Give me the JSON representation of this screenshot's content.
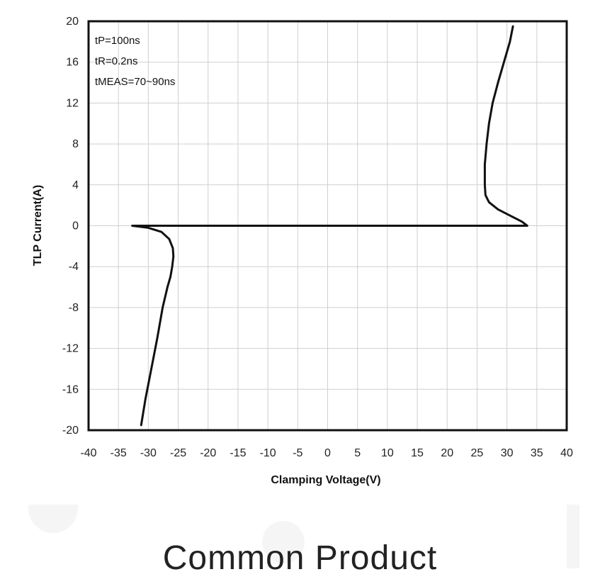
{
  "caption": "Common Product",
  "chart_data": {
    "type": "line",
    "title": "",
    "xlabel": "Clamping Voltage(V)",
    "ylabel": "TLP Current(A)",
    "xlim": [
      -40,
      40
    ],
    "ylim": [
      -20,
      20
    ],
    "x_ticks": [
      -40,
      -35,
      -30,
      -25,
      -20,
      -15,
      -10,
      -5,
      0,
      5,
      10,
      15,
      20,
      25,
      30,
      35,
      40
    ],
    "y_ticks": [
      20,
      16,
      12,
      8,
      4,
      0,
      -4,
      -8,
      -12,
      -16,
      -20
    ],
    "grid": true,
    "legend": "none",
    "annotations": [
      "tP=100ns",
      "tR=0.2ns",
      "tMEAS=70~90ns"
    ],
    "series": [
      {
        "color": "#111111",
        "x": [
          -31.2,
          -30.5,
          -29.5,
          -28.5,
          -27.6,
          -26.8,
          -26.3,
          -26.0,
          -25.8,
          -25.9,
          -26.5,
          -27.8,
          -30.0,
          -32.7,
          33.4,
          32.5,
          30.5,
          28.5,
          27.0,
          26.4,
          26.3,
          26.3,
          26.6,
          27.0,
          27.6,
          28.5,
          29.5,
          30.5,
          31.0
        ],
        "y": [
          -19.5,
          -17.0,
          -14.0,
          -11.0,
          -8.0,
          -6.0,
          -5.0,
          -4.0,
          -3.0,
          -2.2,
          -1.3,
          -0.6,
          -0.2,
          0.0,
          0.0,
          0.4,
          1.0,
          1.6,
          2.3,
          3.0,
          4.0,
          6.0,
          8.0,
          10.0,
          12.0,
          14.0,
          16.0,
          18.0,
          19.5
        ]
      }
    ]
  }
}
